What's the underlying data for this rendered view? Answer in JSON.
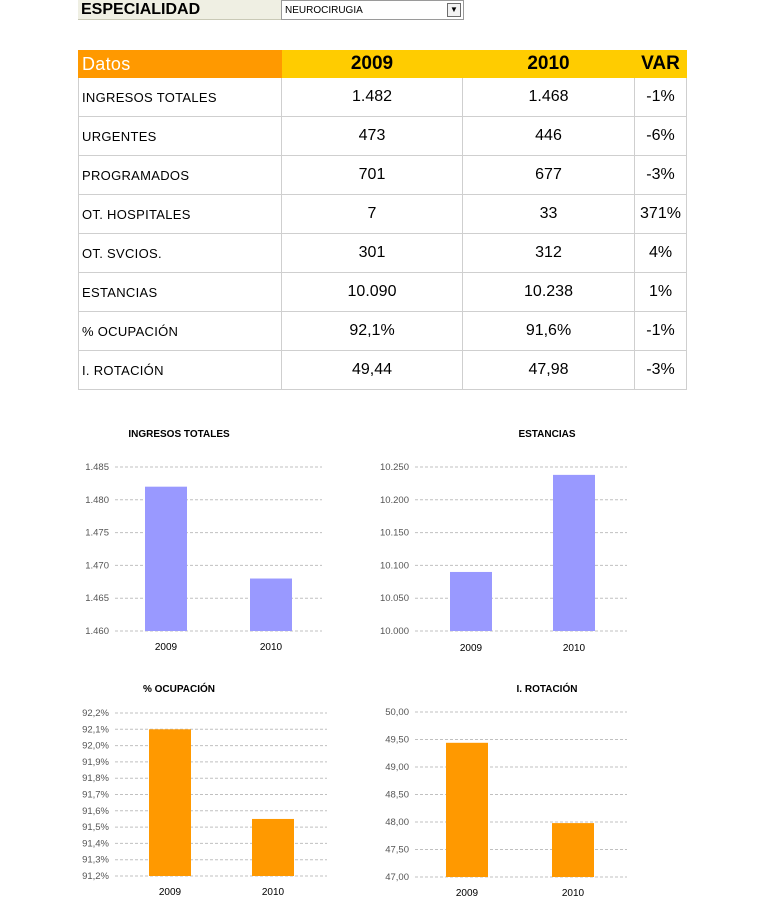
{
  "selector": {
    "label": "ESPECIALIDAD",
    "value": "NEUROCIRUGIA"
  },
  "table": {
    "headers": [
      "Datos",
      "2009",
      "2010",
      "VAR"
    ],
    "rows": [
      [
        "INGRESOS TOTALES",
        "1.482",
        "1.468",
        "-1%"
      ],
      [
        "URGENTES",
        "473",
        "446",
        "-6%"
      ],
      [
        "PROGRAMADOS",
        "701",
        "677",
        "-3%"
      ],
      [
        "OT. HOSPITALES",
        "7",
        "33",
        "371%"
      ],
      [
        "OT. SVCIOS.",
        "301",
        "312",
        "4%"
      ],
      [
        "ESTANCIAS",
        "10.090",
        "10.238",
        "1%"
      ],
      [
        "% OCUPACIÓN",
        "92,1%",
        "91,6%",
        "-1%"
      ],
      [
        "I. ROTACIÓN",
        "49,44",
        "47,98",
        "-3%"
      ]
    ],
    "colors": {
      "header_left": "#ff9900",
      "header": "#ffcc00"
    }
  },
  "chart_data": [
    {
      "type": "bar",
      "title": "INGRESOS TOTALES",
      "categories": [
        "2009",
        "2010"
      ],
      "values": [
        1482,
        1468
      ],
      "ylim": [
        1460,
        1485
      ],
      "yticks": [
        1460,
        1465,
        1470,
        1475,
        1480,
        1485
      ],
      "ytick_labels": [
        "1.460",
        "1.465",
        "1.470",
        "1.475",
        "1.480",
        "1.485"
      ],
      "grid": true,
      "color": "#9999ff"
    },
    {
      "type": "bar",
      "title": "ESTANCIAS",
      "categories": [
        "2009",
        "2010"
      ],
      "values": [
        10090,
        10238
      ],
      "ylim": [
        10000,
        10250
      ],
      "yticks": [
        10000,
        10050,
        10100,
        10150,
        10200,
        10250
      ],
      "ytick_labels": [
        "10.000",
        "10.050",
        "10.100",
        "10.150",
        "10.200",
        "10.250"
      ],
      "grid": true,
      "color": "#9999ff"
    },
    {
      "type": "bar",
      "title": "% OCUPACIÓN",
      "categories": [
        "2009",
        "2010"
      ],
      "values": [
        92.1,
        91.55
      ],
      "ylim": [
        91.2,
        92.2
      ],
      "yticks": [
        91.2,
        91.3,
        91.4,
        91.5,
        91.6,
        91.7,
        91.8,
        91.9,
        92.0,
        92.1,
        92.2
      ],
      "ytick_labels": [
        "91,2%",
        "91,3%",
        "91,4%",
        "91,5%",
        "91,6%",
        "91,7%",
        "91,8%",
        "91,9%",
        "92,0%",
        "92,1%",
        "92,2%"
      ],
      "grid": true,
      "color": "#ff9900"
    },
    {
      "type": "bar",
      "title": "I. ROTACIÓN",
      "categories": [
        "2009",
        "2010"
      ],
      "values": [
        49.44,
        47.98
      ],
      "ylim": [
        47.0,
        50.0
      ],
      "yticks": [
        47.0,
        47.5,
        48.0,
        48.5,
        49.0,
        49.5,
        50.0
      ],
      "ytick_labels": [
        "47,00",
        "47,50",
        "48,00",
        "48,50",
        "49,00",
        "49,50",
        "50,00"
      ],
      "grid": true,
      "color": "#ff9900"
    }
  ]
}
